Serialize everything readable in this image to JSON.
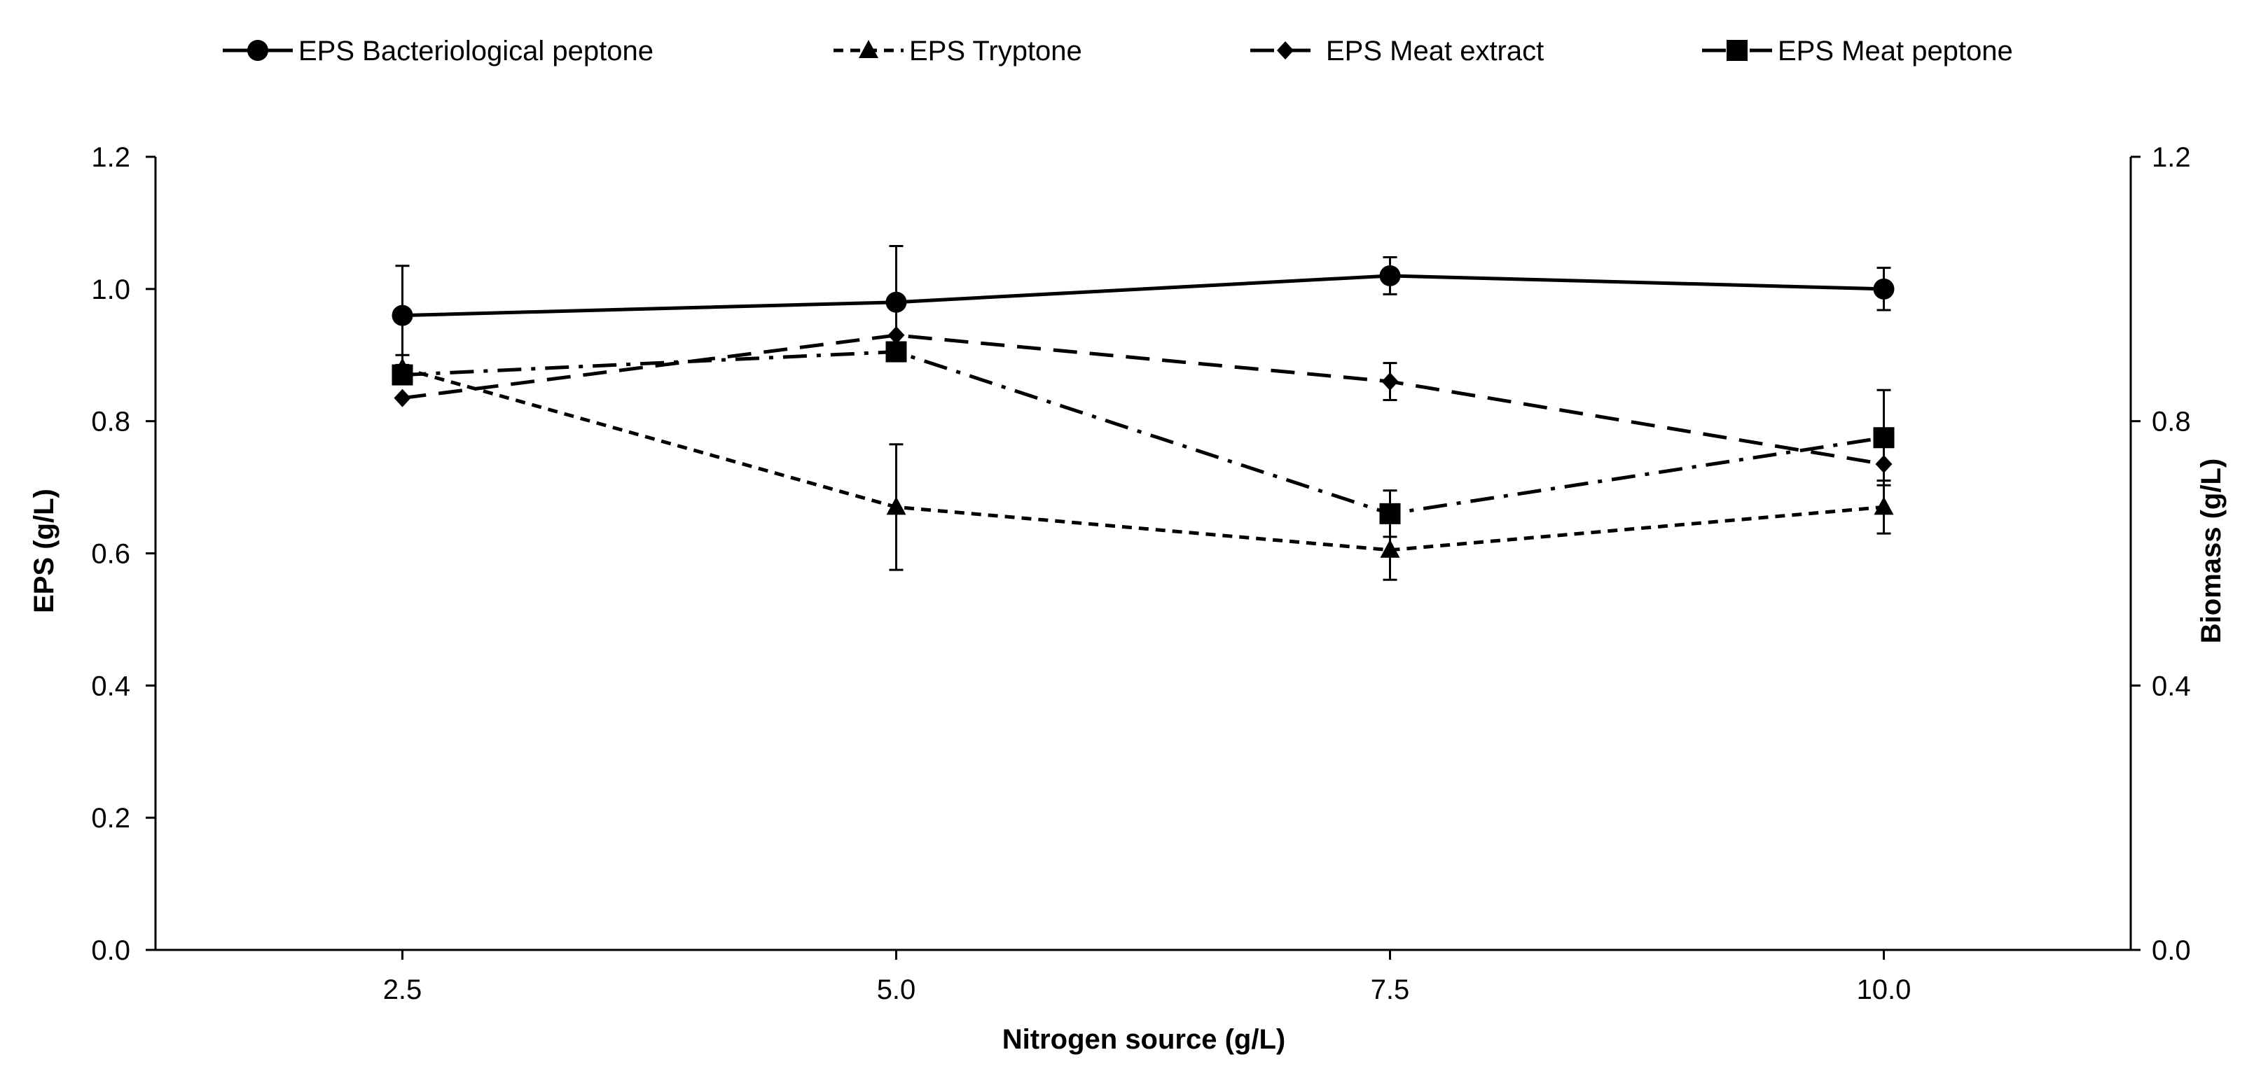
{
  "chart_data": {
    "type": "line",
    "title": "",
    "xlabel": "Nitrogen source (g/L)",
    "ylabel": "EPS (g/L)",
    "y2label": "Biomass (g/L)",
    "x": [
      2.5,
      5.0,
      7.5,
      10.0
    ],
    "x_tick_labels": [
      "2.5",
      "5.0",
      "7.5",
      "10.0"
    ],
    "xlim": [
      1.25,
      11.25
    ],
    "ylim": [
      0,
      1.2
    ],
    "y_ticks": [
      0.0,
      0.2,
      0.4,
      0.6,
      0.8,
      1.0,
      1.2
    ],
    "y_tick_labels": [
      "0.0",
      "0.2",
      "0.4",
      "0.6",
      "0.8",
      "1.0",
      "1.2"
    ],
    "y2lim": [
      0,
      1.2
    ],
    "y2_ticks": [
      0.0,
      0.4,
      0.8,
      1.2
    ],
    "y2_tick_labels": [
      "0.0",
      "0.4",
      "0.8",
      "1.2"
    ],
    "grid": false,
    "legend_position": "top",
    "series": [
      {
        "name": "EPS Bacteriological peptone",
        "marker": "circle",
        "line_style": "solid",
        "values": [
          0.96,
          0.98,
          1.02,
          1.0
        ],
        "errors": [
          0.075,
          0.085,
          0.028,
          0.032
        ]
      },
      {
        "name": "EPS Tryptone",
        "marker": "triangle",
        "line_style": "short-dash",
        "values": [
          0.88,
          0.67,
          0.605,
          0.67
        ],
        "errors": [
          0.02,
          0.095,
          0.045,
          0.04
        ]
      },
      {
        "name": "EPS Meat extract",
        "marker": "diamond",
        "line_style": "long-dash",
        "values": [
          0.835,
          0.93,
          0.86,
          0.735
        ],
        "errors": [
          0.0,
          0.0,
          0.028,
          0.0
        ]
      },
      {
        "name": "EPS Meat peptone",
        "marker": "square",
        "line_style": "dash-dot",
        "values": [
          0.87,
          0.905,
          0.66,
          0.775
        ],
        "errors": [
          0.0,
          0.0,
          0.035,
          0.072
        ]
      }
    ],
    "colors": {
      "line": "#000000",
      "background": "#ffffff"
    }
  }
}
